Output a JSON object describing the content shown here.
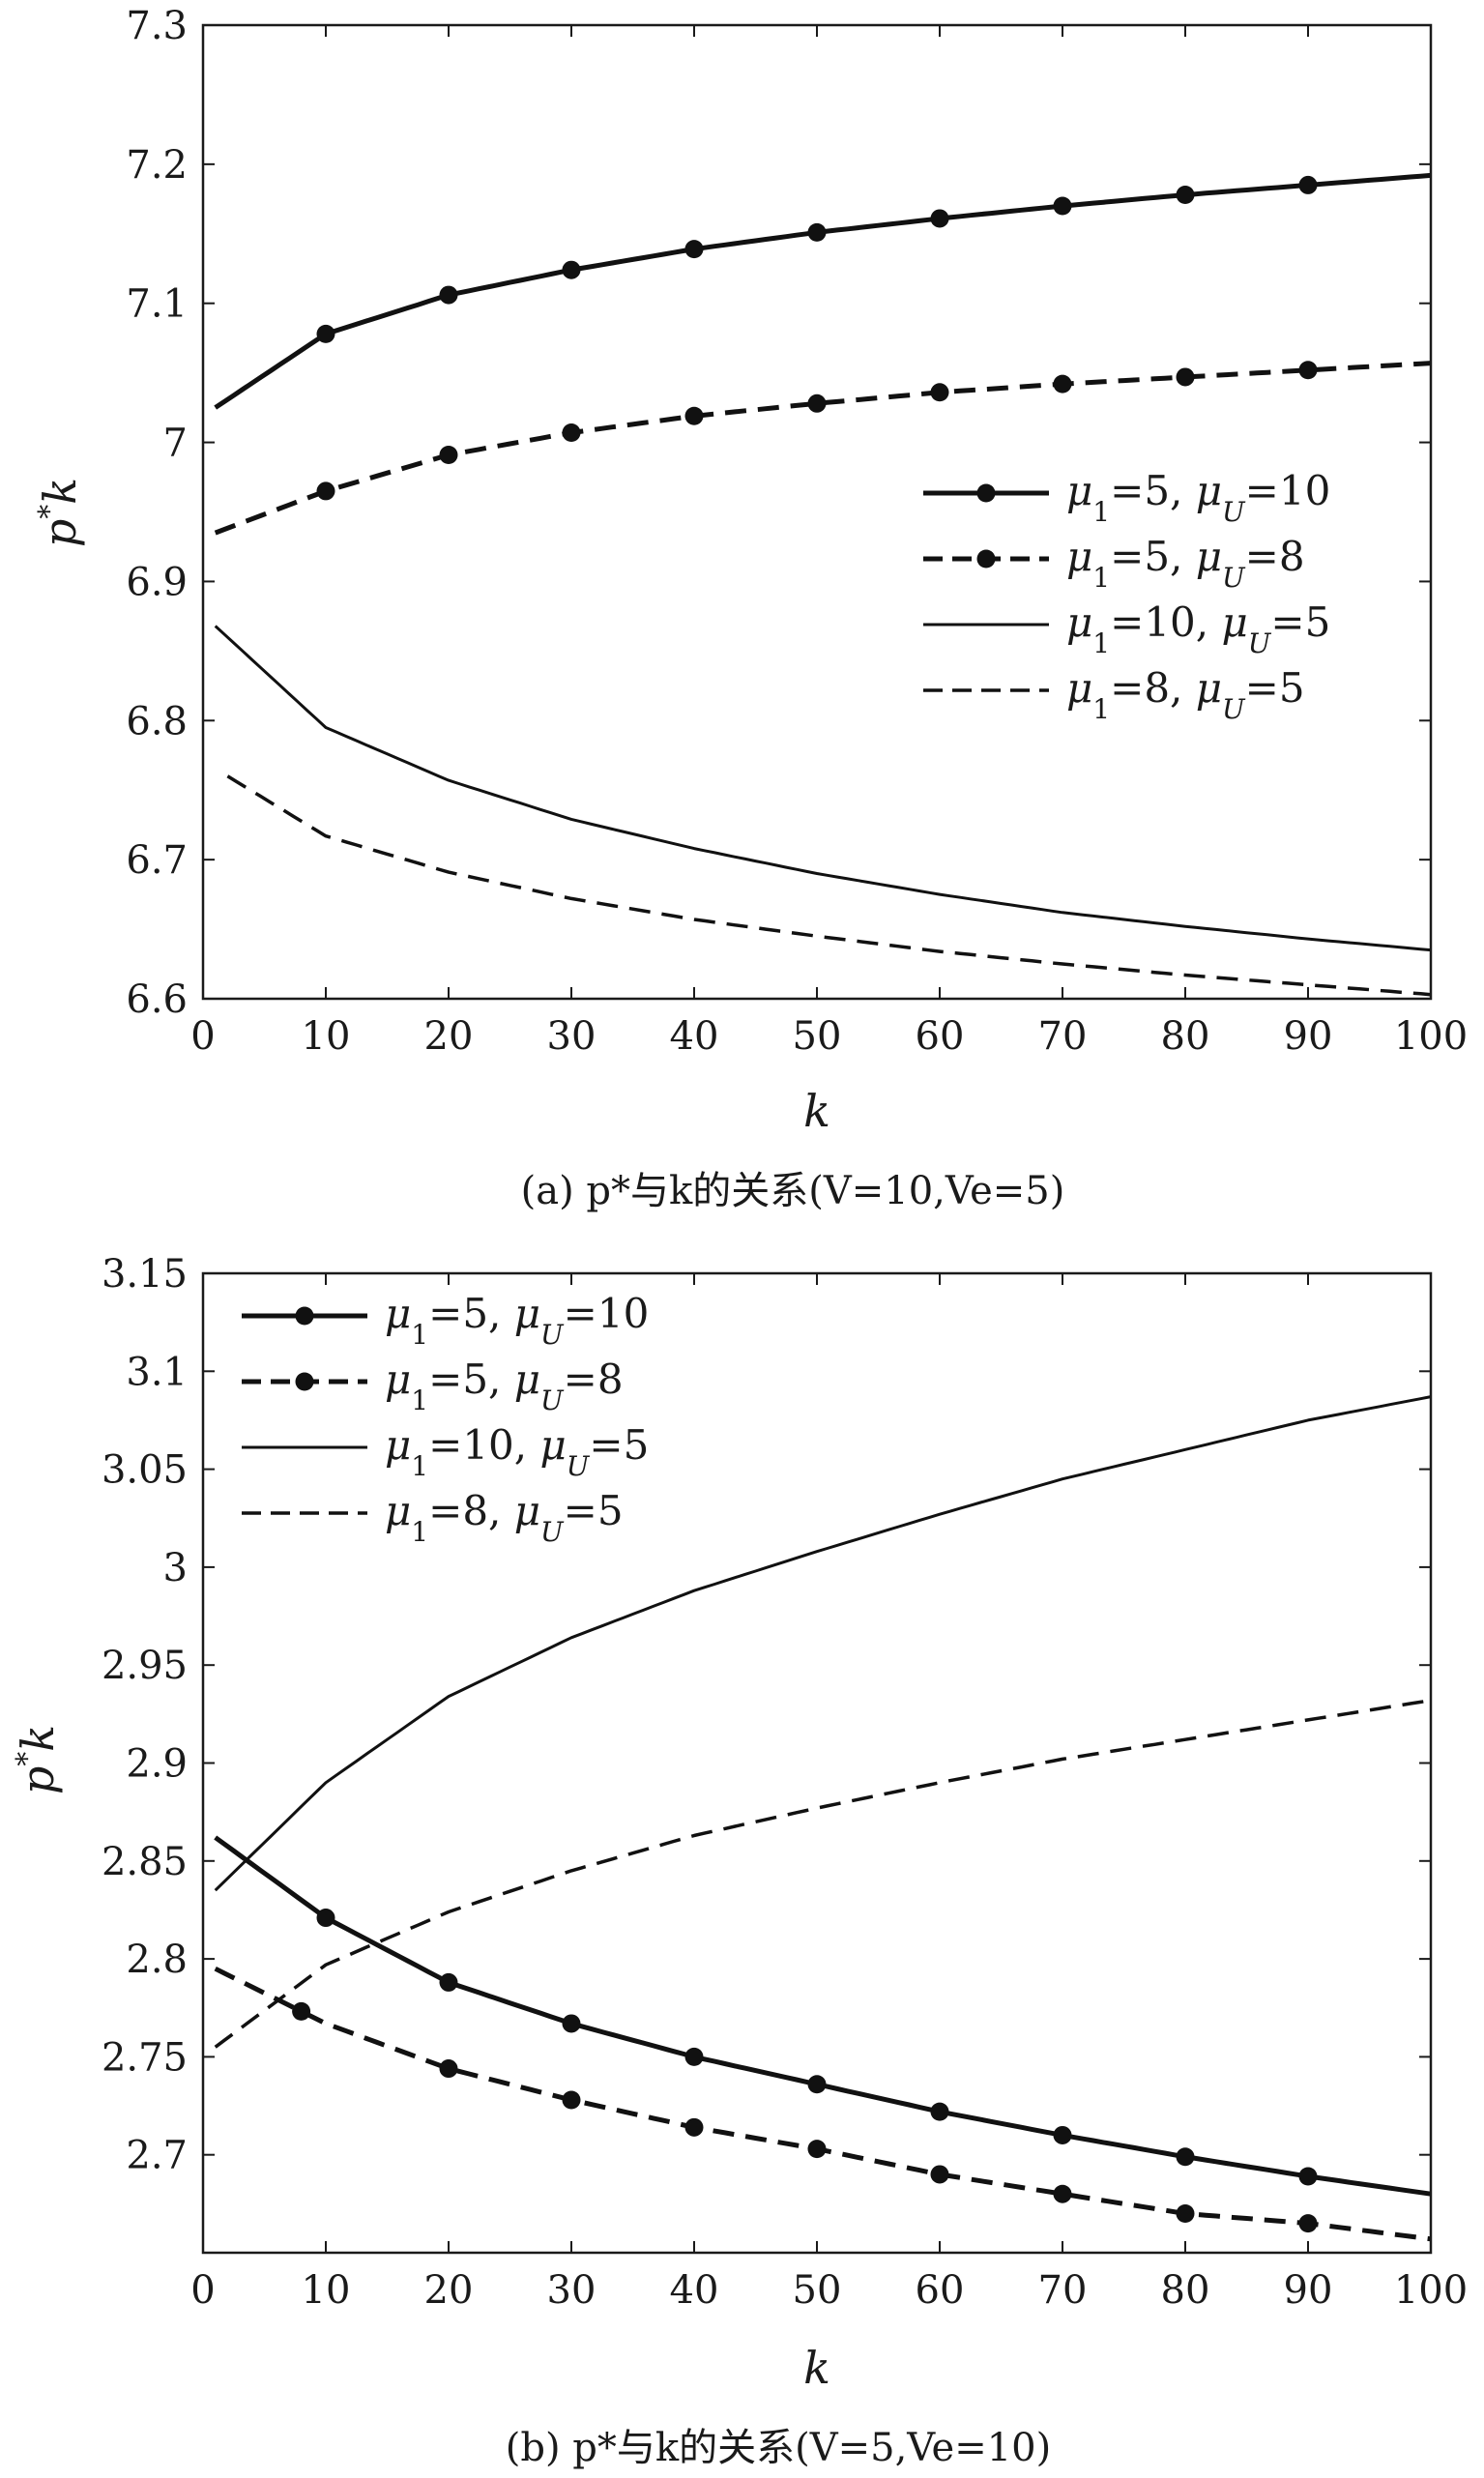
{
  "chart_data": [
    {
      "type": "line",
      "caption": "(a) p*与k的关系(V=10,Ve=5)",
      "xlabel": "k",
      "ylabel": "p*k",
      "xlim": [
        0,
        100
      ],
      "ylim": [
        6.6,
        7.3
      ],
      "xticks": [
        "0",
        "10",
        "20",
        "30",
        "40",
        "50",
        "60",
        "70",
        "80",
        "90",
        "100"
      ],
      "yticks": [
        "6.6",
        "6.7",
        "6.8",
        "6.9",
        "7",
        "7.1",
        "7.2",
        "7.3"
      ],
      "legend_position": "center-right",
      "series": [
        {
          "name": "μ1=5, μU=10",
          "style": "solid-thick",
          "markers": true,
          "x": [
            1,
            10,
            20,
            30,
            40,
            50,
            60,
            70,
            80,
            90,
            100
          ],
          "y": [
            7.025,
            7.078,
            7.106,
            7.124,
            7.139,
            7.151,
            7.161,
            7.17,
            7.178,
            7.185,
            7.192
          ],
          "marker_x": [
            10,
            20,
            30,
            40,
            50,
            60,
            70,
            80,
            90
          ]
        },
        {
          "name": "μ1=5, μU=8",
          "style": "dashed-thick",
          "markers": true,
          "x": [
            1,
            10,
            20,
            30,
            40,
            50,
            60,
            70,
            80,
            90,
            100
          ],
          "y": [
            6.935,
            6.965,
            6.991,
            7.007,
            7.019,
            7.028,
            7.036,
            7.042,
            7.047,
            7.052,
            7.057
          ],
          "marker_x": [
            10,
            20,
            30,
            40,
            50,
            60,
            70,
            80,
            90
          ]
        },
        {
          "name": "μ1=10, μU=5",
          "style": "solid",
          "markers": false,
          "x": [
            1,
            10,
            20,
            30,
            40,
            50,
            60,
            70,
            80,
            90,
            100
          ],
          "y": [
            6.868,
            6.795,
            6.757,
            6.729,
            6.708,
            6.69,
            6.675,
            6.662,
            6.652,
            6.643,
            6.635
          ]
        },
        {
          "name": "μ1=8, μU=5",
          "style": "dashed",
          "markers": false,
          "x": [
            2,
            10,
            20,
            30,
            40,
            50,
            60,
            70,
            80,
            90,
            100
          ],
          "y": [
            6.76,
            6.717,
            6.691,
            6.672,
            6.657,
            6.645,
            6.634,
            6.625,
            6.617,
            6.61,
            6.603
          ]
        }
      ]
    },
    {
      "type": "line",
      "caption": "(b) p*与k的关系(V=5,Ve=10)",
      "xlabel": "k",
      "ylabel": "p*k",
      "xlim": [
        0,
        100
      ],
      "ylim": [
        2.65,
        3.15
      ],
      "xticks": [
        "0",
        "10",
        "20",
        "30",
        "40",
        "50",
        "60",
        "70",
        "80",
        "90",
        "100"
      ],
      "yticks": [
        "2.7",
        "2.75",
        "2.8",
        "2.85",
        "2.9",
        "2.95",
        "3",
        "3.05",
        "3.1",
        "3.15"
      ],
      "legend_position": "top-left",
      "series": [
        {
          "name": "μ1=5, μU=10",
          "style": "solid-thick",
          "markers": true,
          "x": [
            1,
            10,
            20,
            30,
            40,
            50,
            60,
            70,
            80,
            90,
            100
          ],
          "y": [
            2.862,
            2.821,
            2.788,
            2.767,
            2.75,
            2.736,
            2.722,
            2.71,
            2.699,
            2.689,
            2.68
          ],
          "marker_x": [
            10,
            20,
            30,
            40,
            50,
            60,
            70,
            80,
            90
          ]
        },
        {
          "name": "μ1=5, μU=8",
          "style": "dashed-thick",
          "markers": true,
          "x": [
            1,
            10,
            20,
            30,
            40,
            50,
            60,
            70,
            80,
            90,
            100
          ],
          "y": [
            2.795,
            2.767,
            2.744,
            2.728,
            2.714,
            2.703,
            2.69,
            2.68,
            2.67,
            2.665,
            2.657
          ],
          "marker_x": [
            8,
            20,
            30,
            40,
            50,
            60,
            70,
            80,
            90
          ]
        },
        {
          "name": "μ1=10, μU=5",
          "style": "solid",
          "markers": false,
          "x": [
            1,
            10,
            20,
            30,
            40,
            50,
            60,
            70,
            80,
            90,
            100
          ],
          "y": [
            2.835,
            2.89,
            2.934,
            2.964,
            2.988,
            3.008,
            3.027,
            3.045,
            3.06,
            3.075,
            3.087
          ]
        },
        {
          "name": "μ1=8, μU=5",
          "style": "dashed",
          "markers": false,
          "x": [
            1,
            10,
            20,
            30,
            40,
            50,
            60,
            70,
            80,
            90,
            100
          ],
          "y": [
            2.755,
            2.797,
            2.824,
            2.845,
            2.863,
            2.877,
            2.89,
            2.902,
            2.912,
            2.922,
            2.932
          ]
        }
      ]
    }
  ]
}
